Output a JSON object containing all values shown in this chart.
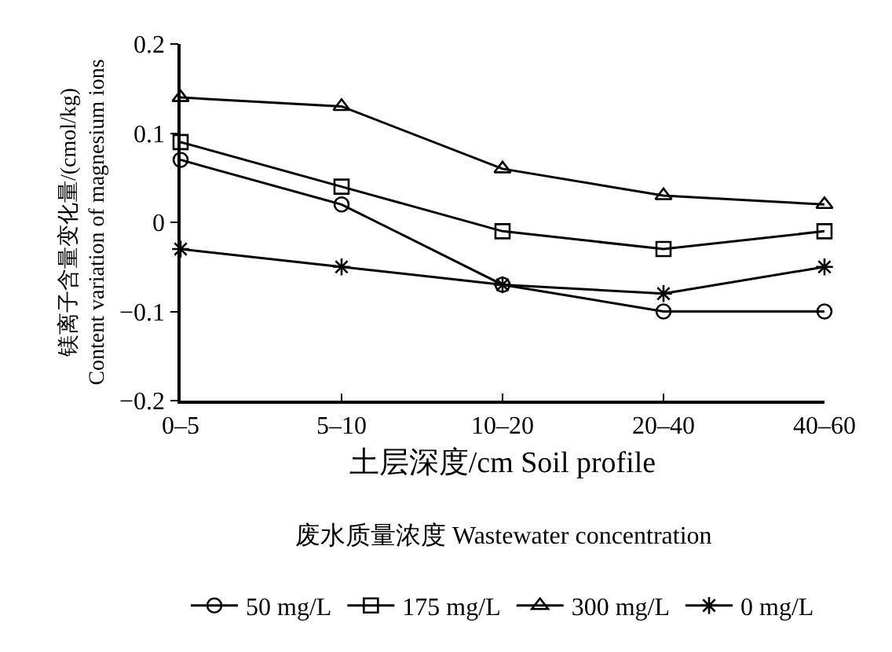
{
  "chart_data": {
    "type": "line",
    "xlabel": "土层深度/cm Soil profile",
    "ylabel": "镁离子含量变化量/(cmol/kg)\nContent variation of magnesium ions",
    "legend_title": "废水质量浓度 Wastewater concentration",
    "categories": [
      "0–5",
      "5–10",
      "10–20",
      "20–40",
      "40–60"
    ],
    "series": [
      {
        "name": "50 mg/L",
        "color": "#000000",
        "marker": "circle",
        "values": [
          0.07,
          0.02,
          -0.07,
          -0.1,
          -0.1
        ]
      },
      {
        "name": "175 mg/L",
        "color": "#000000",
        "marker": "square",
        "values": [
          0.09,
          0.04,
          -0.01,
          -0.03,
          -0.01
        ]
      },
      {
        "name": "300 mg/L",
        "color": "#000000",
        "marker": "triangle",
        "values": [
          0.14,
          0.13,
          0.06,
          0.03,
          0.02
        ]
      },
      {
        "name": "0 mg/L",
        "color": "#000000",
        "marker": "cross",
        "values": [
          -0.03,
          -0.05,
          -0.07,
          -0.08,
          -0.05
        ]
      }
    ],
    "ylim": [
      -0.2,
      0.2
    ],
    "yticks": [
      -0.2,
      -0.1,
      0,
      0.1,
      0.2
    ],
    "legend": "bottom",
    "line_style": "solid"
  }
}
